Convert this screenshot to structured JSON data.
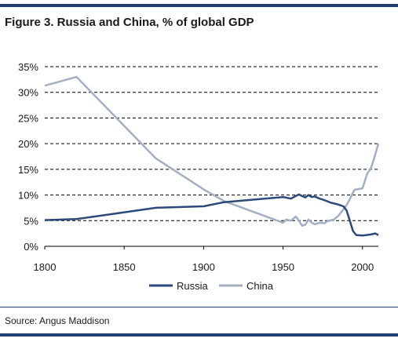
{
  "header": {
    "title": "Figure 3. Russia and China, % of global GDP"
  },
  "footer": {
    "source": "Source: Angus Maddison"
  },
  "colors": {
    "rule": "#1f3f73",
    "russia": "#2b4a7a",
    "china": "#a4afc2",
    "grid": "#000000"
  },
  "chart_data": {
    "type": "line",
    "title": "Figure 3. Russia and China, % of global GDP",
    "xlabel": "",
    "ylabel": "",
    "xlim": [
      1800,
      2010
    ],
    "ylim": [
      0,
      35
    ],
    "xticks": [
      1800,
      1850,
      1900,
      1950,
      2000
    ],
    "yticks": [
      0,
      5,
      10,
      15,
      20,
      25,
      30,
      35
    ],
    "ytick_labels": [
      "0%",
      "5%",
      "10%",
      "15%",
      "20%",
      "25%",
      "30%",
      "35%"
    ],
    "grid": "horizontal-dashed",
    "legend_position": "bottom-center",
    "series": [
      {
        "name": "Russia",
        "x": [
          1800,
          1820,
          1870,
          1900,
          1913,
          1950,
          1955,
          1958,
          1960,
          1962,
          1964,
          1966,
          1968,
          1970,
          1973,
          1976,
          1980,
          1984,
          1988,
          1990,
          1992,
          1994,
          1996,
          2000,
          2005,
          2008,
          2010
        ],
        "values": [
          5.1,
          5.3,
          7.5,
          7.8,
          8.6,
          9.6,
          9.3,
          9.8,
          10.1,
          9.8,
          9.5,
          10.0,
          9.6,
          9.7,
          9.3,
          9.0,
          8.5,
          8.2,
          7.8,
          7.0,
          5.0,
          3.0,
          2.2,
          2.1,
          2.3,
          2.5,
          2.2
        ]
      },
      {
        "name": "China",
        "x": [
          1800,
          1820,
          1870,
          1900,
          1913,
          1950,
          1952,
          1955,
          1958,
          1960,
          1962,
          1964,
          1966,
          1968,
          1970,
          1973,
          1976,
          1978,
          1982,
          1985,
          1990,
          1995,
          2000,
          2003,
          2005,
          2007,
          2010
        ],
        "values": [
          31.3,
          33.0,
          17.1,
          11.1,
          8.8,
          4.6,
          5.2,
          5.0,
          5.8,
          5.0,
          4.0,
          4.2,
          5.2,
          4.6,
          4.3,
          4.6,
          4.5,
          4.9,
          5.2,
          6.0,
          8.0,
          11.0,
          11.3,
          14.2,
          15.0,
          16.8,
          20.0
        ]
      }
    ]
  }
}
